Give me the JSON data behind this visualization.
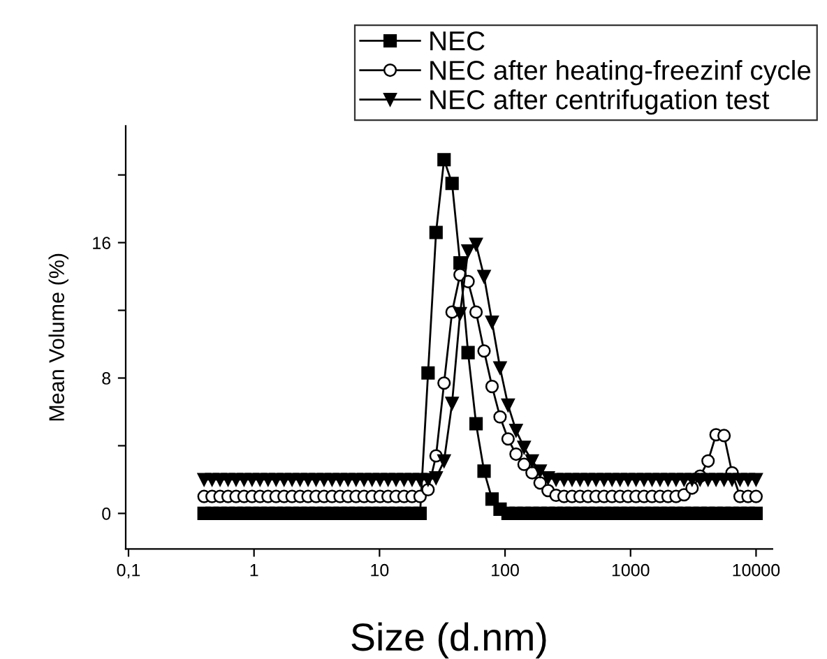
{
  "chart_data": {
    "type": "line",
    "xlabel": "Size (d.nm)",
    "ylabel": "Mean Volume (%)",
    "log": "x",
    "xlim": [
      0.095,
      13500
    ],
    "xticks": [
      {
        "value": 0.1,
        "label": "0,1"
      },
      1,
      10,
      100,
      1000,
      10000
    ],
    "ylim": [
      -2.1,
      22.9
    ],
    "yticks": [
      0,
      {
        "value": 4,
        "label": null
      },
      8,
      {
        "value": 12,
        "label": null
      },
      16,
      {
        "value": 20,
        "label": null
      }
    ],
    "x": [
      0.4,
      0.4632,
      0.5365,
      0.6213,
      0.7195,
      0.8332,
      0.9649,
      1.117,
      1.294,
      1.499,
      1.736,
      2.01,
      2.328,
      2.696,
      3.122,
      3.615,
      4.187,
      4.849,
      5.615,
      6.503,
      7.531,
      8.721,
      10.1,
      11.7,
      13.54,
      15.69,
      18.17,
      21.04,
      24.36,
      28.21,
      32.67,
      37.84,
      43.82,
      50.75,
      58.77,
      68.06,
      78.82,
      91.28,
      105.7,
      122.4,
      141.8,
      164.2,
      190.1,
      220.2,
      255.0,
      295.3,
      342.0,
      396.1,
      458.7,
      531.2,
      615.1,
      712.4,
      825.0,
      955.4,
      1106,
      1281,
      1484,
      1718,
      1990,
      2305,
      2669,
      3091,
      3580,
      4145,
      4801,
      5560,
      6439,
      7456,
      8635,
      10000
    ],
    "grid": false,
    "legend": "top right",
    "line_style": "solid",
    "series": [
      {
        "name": "NEC",
        "color": "#000000",
        "marker": "square",
        "values": [
          0,
          0,
          0,
          0,
          0,
          0,
          0,
          0,
          0,
          0,
          0,
          0,
          0,
          0,
          0,
          0,
          0,
          0,
          0,
          0,
          0,
          0,
          0,
          0,
          0,
          0,
          0,
          0,
          8.3,
          16.6,
          20.9,
          19.5,
          14.8,
          9.5,
          5.3,
          2.5,
          0.85,
          0.25,
          0,
          0,
          0,
          0,
          0,
          0,
          0,
          0,
          0,
          0,
          0,
          0,
          0,
          0,
          0,
          0,
          0,
          0,
          0,
          0,
          0,
          0,
          0,
          0,
          0,
          0,
          0,
          0,
          0,
          0,
          0,
          0
        ]
      },
      {
        "name": "NEC after heating-freezinf cycle",
        "color": "#000000",
        "marker": "circle",
        "values": [
          1,
          1,
          1,
          1,
          1,
          1,
          1,
          1,
          1,
          1,
          1,
          1,
          1,
          1,
          1,
          1,
          1,
          1,
          1,
          1,
          1,
          1,
          1,
          1,
          1,
          1,
          1,
          1,
          1.4,
          3.4,
          7.7,
          11.9,
          14.1,
          13.7,
          11.9,
          9.6,
          7.5,
          5.7,
          4.4,
          3.5,
          2.9,
          2.4,
          1.8,
          1.35,
          1.07,
          1,
          1,
          1,
          1,
          1,
          1,
          1,
          1,
          1,
          1,
          1,
          1,
          1,
          1,
          1,
          1.1,
          1.5,
          2.2,
          3.1,
          4.65,
          4.6,
          2.4,
          1,
          1,
          1
        ]
      },
      {
        "name": "NEC after centrifugation test",
        "color": "#000000",
        "marker": "triangle",
        "values": [
          2,
          2,
          2,
          2,
          2,
          2,
          2,
          2,
          2,
          2,
          2,
          2,
          2,
          2,
          2,
          2,
          2,
          2,
          2,
          2,
          2,
          2,
          2,
          2,
          2,
          2,
          2,
          2,
          2,
          2.1,
          3.1,
          6.5,
          11.8,
          15.5,
          15.9,
          14.0,
          11.3,
          8.6,
          6.4,
          4.9,
          3.9,
          3.1,
          2.5,
          2.1,
          2,
          2,
          2,
          2,
          2,
          2,
          2,
          2,
          2,
          2,
          2,
          2,
          2,
          2,
          2,
          2,
          2,
          2,
          2,
          2,
          2,
          2,
          2,
          2,
          2,
          2
        ]
      }
    ]
  }
}
